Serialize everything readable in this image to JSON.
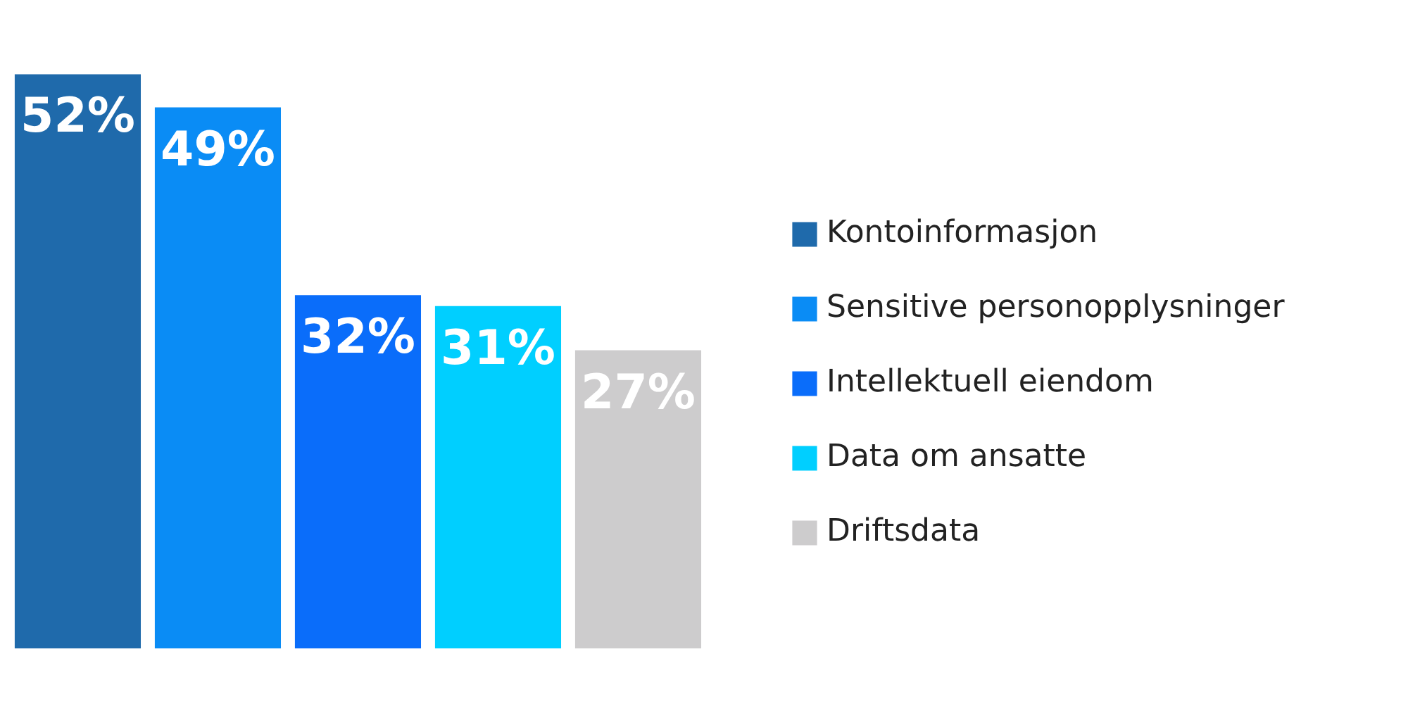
{
  "chart_data": {
    "type": "bar",
    "categories": [
      null,
      null,
      null,
      null,
      null
    ],
    "legend": "right",
    "stacked": true,
    "series": [
      {
        "name": "Kontoinformasjon",
        "color": "#1f6aab",
        "values": [
          52,
          null,
          null,
          null,
          null
        ],
        "value_labels": [
          "52%",
          null,
          null,
          null,
          null
        ]
      },
      {
        "name": "Sensitive personopplysninger",
        "color": "#0a8cf5",
        "values": [
          null,
          49,
          null,
          null,
          null
        ],
        "value_labels": [
          null,
          "49%",
          null,
          null,
          null
        ]
      },
      {
        "name": "Intellektuell eiendom",
        "color": "#0a6dfa",
        "values": [
          null,
          null,
          32,
          null,
          null
        ],
        "value_labels": [
          null,
          null,
          "32%",
          null,
          null
        ]
      },
      {
        "name": "Data om ansatte",
        "color": "#00cfff",
        "values": [
          null,
          null,
          null,
          31,
          null
        ],
        "value_labels": [
          null,
          null,
          null,
          "31%",
          null
        ]
      },
      {
        "name": "Driftsdata",
        "color": "#cdcccd",
        "values": [
          null,
          null,
          null,
          null,
          27
        ],
        "value_labels": [
          null,
          null,
          null,
          null,
          "27%"
        ]
      }
    ]
  }
}
